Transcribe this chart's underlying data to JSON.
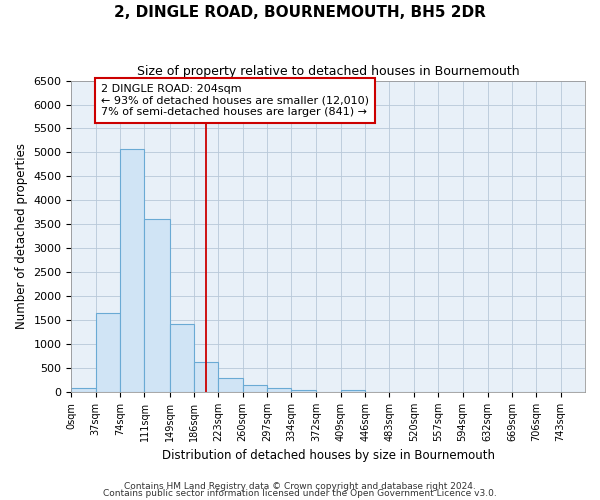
{
  "title": "2, DINGLE ROAD, BOURNEMOUTH, BH5 2DR",
  "subtitle": "Size of property relative to detached houses in Bournemouth",
  "xlabel": "Distribution of detached houses by size in Bournemouth",
  "ylabel": "Number of detached properties",
  "annotation_line1": "2 DINGLE ROAD: 204sqm",
  "annotation_line2": "← 93% of detached houses are smaller (12,010)",
  "annotation_line3": "7% of semi-detached houses are larger (841) →",
  "property_size": 204,
  "bin_edges": [
    0,
    37,
    74,
    111,
    149,
    186,
    223,
    260,
    297,
    334,
    372,
    409,
    446,
    483,
    520,
    557,
    594,
    632,
    669,
    706,
    743,
    780
  ],
  "bar_heights": [
    75,
    1650,
    5080,
    3600,
    1420,
    620,
    300,
    150,
    75,
    50,
    0,
    50,
    0,
    0,
    0,
    0,
    0,
    0,
    0,
    0,
    0
  ],
  "bar_color": "#d0e4f5",
  "bar_edge_color": "#6aaad4",
  "red_line_color": "#cc0000",
  "annotation_box_color": "#cc0000",
  "background_color": "#ffffff",
  "plot_bg_color": "#e8f0f8",
  "grid_color": "#b8c8d8",
  "ylim": [
    0,
    6500
  ],
  "xlim": [
    0,
    780
  ],
  "yticks": [
    0,
    500,
    1000,
    1500,
    2000,
    2500,
    3000,
    3500,
    4000,
    4500,
    5000,
    5500,
    6000,
    6500
  ],
  "xtick_labels": [
    "0sqm",
    "37sqm",
    "74sqm",
    "111sqm",
    "149sqm",
    "186sqm",
    "223sqm",
    "260sqm",
    "297sqm",
    "334sqm",
    "372sqm",
    "409sqm",
    "446sqm",
    "483sqm",
    "520sqm",
    "557sqm",
    "594sqm",
    "632sqm",
    "669sqm",
    "706sqm",
    "743sqm"
  ],
  "xtick_positions": [
    0,
    37,
    74,
    111,
    149,
    186,
    223,
    260,
    297,
    334,
    372,
    409,
    446,
    483,
    520,
    557,
    594,
    632,
    669,
    706,
    743
  ],
  "footnote1": "Contains HM Land Registry data © Crown copyright and database right 2024.",
  "footnote2": "Contains public sector information licensed under the Open Government Licence v3.0."
}
